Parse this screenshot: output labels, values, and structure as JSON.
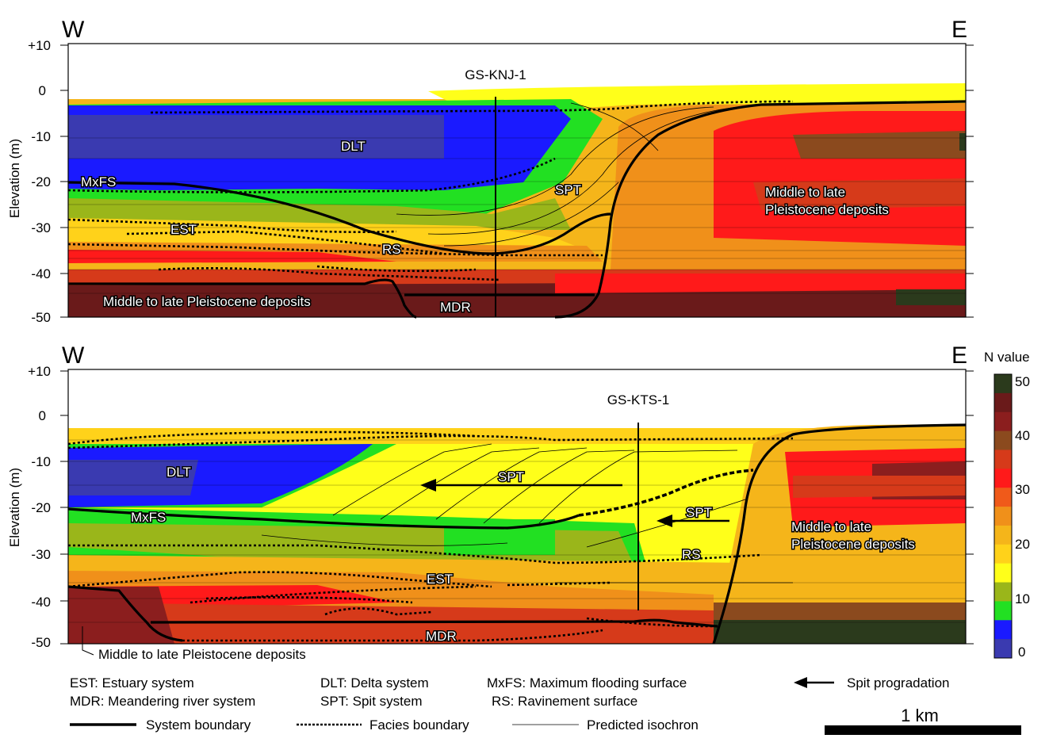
{
  "panels": [
    {
      "direction_left": "W",
      "direction_right": "E",
      "y_axis_label": "Elevation (m)",
      "y_ticks": [
        "+10",
        "0",
        "-10",
        "-20",
        "-30",
        "-40",
        "-50"
      ],
      "borehole": "GS-KNJ-1",
      "labels": {
        "dlt": "DLT",
        "mxfs": "MxFS",
        "spt": "SPT",
        "est": "EST",
        "rs": "RS",
        "mdr": "MDR",
        "pleist_east_1": "Middle to late",
        "pleist_east_2": "Pleistocene deposits",
        "pleist_west": "Middle to late Pleistocene deposits"
      }
    },
    {
      "direction_left": "W",
      "direction_right": "E",
      "y_axis_label": "Elevation (m)",
      "y_ticks": [
        "+10",
        "0",
        "-10",
        "-20",
        "-30",
        "-40",
        "-50"
      ],
      "borehole": "GS-KTS-1",
      "labels": {
        "dlt": "DLT",
        "mxfs": "MxFS",
        "spt_west": "SPT",
        "spt_east": "SPT",
        "rs": "RS",
        "est": "EST",
        "mdr": "MDR",
        "pleist_east_1": "Middle to late",
        "pleist_east_2": "Pleistocene deposits",
        "pleist_west": "Middle to late Pleistocene deposits"
      }
    }
  ],
  "colorbar": {
    "title": "N value",
    "ticks": [
      "50",
      "40",
      "30",
      "20",
      "10",
      "0"
    ],
    "colors": [
      "#2b3a1c",
      "#6a1a1a",
      "#8b1e1e",
      "#8b4a1e",
      "#d63a1a",
      "#ff1a1a",
      "#f05a1a",
      "#f0901a",
      "#f5b51a",
      "#ffd21a",
      "#ffff1a",
      "#9ab61a",
      "#22e022",
      "#1a1aff",
      "#3a3ab0"
    ]
  },
  "legend": {
    "row1": [
      "EST: Estuary system",
      "DLT: Delta system",
      "MxFS: Maximum flooding surface",
      "Spit progradation"
    ],
    "row2": [
      "MDR: Meandering river system",
      "SPT: Spit system",
      "RS: Ravinement surface"
    ],
    "lines": [
      "System boundary",
      "Facies boundary",
      "Predicted isochron"
    ],
    "scale": "1 km"
  }
}
